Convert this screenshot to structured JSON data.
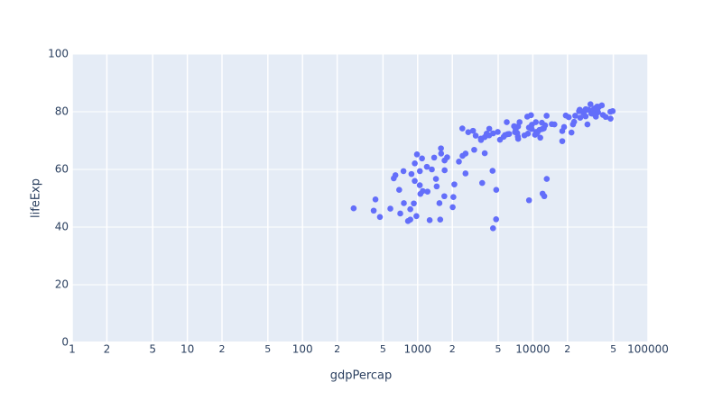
{
  "chart_data": {
    "type": "scatter",
    "x_label": "gdpPercap",
    "y_label": "lifeExp",
    "x_scale": "log",
    "grid": true,
    "color": "#636efa",
    "xlim": [
      1,
      100000
    ],
    "ylim": [
      0,
      100
    ],
    "xticks": [
      1,
      2,
      5,
      10,
      {
        "value": 20,
        "label": "2"
      },
      {
        "value": 50,
        "label": "5"
      },
      100,
      {
        "value": 200,
        "label": "2"
      },
      {
        "value": 500,
        "label": "5"
      },
      1000,
      {
        "value": 2000,
        "label": "2"
      },
      {
        "value": 5000,
        "label": "5"
      },
      10000,
      {
        "value": 20000,
        "label": "2"
      },
      {
        "value": 50000,
        "label": "5"
      },
      100000
    ],
    "yticks": [
      0,
      20,
      40,
      60,
      80,
      100
    ],
    "x": [
      975,
      5937,
      6223,
      4797,
      12779,
      34435,
      36126,
      29796,
      1391,
      33693,
      1441,
      3822,
      7446,
      12570,
      9066,
      10681,
      1217,
      430,
      1714,
      2042,
      36319,
      706,
      1704,
      13172,
      4959,
      7007,
      986,
      278,
      3633,
      9645,
      1545,
      14619,
      8948,
      22833,
      35278,
      2082,
      6025,
      6873,
      5581,
      5728,
      12154,
      641,
      691,
      33207,
      30470,
      13206,
      753,
      32170,
      1328,
      27538,
      5186,
      943,
      579,
      1202,
      3548,
      39725,
      18009,
      36181,
      2452,
      3541,
      11606,
      4471,
      40676,
      25523,
      28570,
      7321,
      31656,
      4519,
      1463,
      1593,
      23348,
      47307,
      10461,
      1569,
      415,
      12057,
      1045,
      759,
      12452,
      1043,
      1803,
      10957,
      11978,
      3096,
      9254,
      3820,
      824,
      944,
      4811,
      1091,
      36798,
      25185,
      2749,
      620,
      2014,
      49357,
      22316,
      2606,
      9809,
      4173,
      7409,
      3190,
      15390,
      20510,
      19329,
      7670,
      10808,
      863,
      1598,
      21655,
      1712,
      9787,
      863,
      47143,
      18678,
      25768,
      926,
      9270,
      28821,
      3970,
      2602,
      4513,
      33860,
      37506,
      4185,
      28718,
      1107,
      7458,
      883,
      18009,
      7093,
      8458,
      1056,
      33203,
      42952,
      10611,
      11416,
      2442,
      3025,
      2281,
      1271,
      470
    ],
    "values": [
      43.8,
      76.4,
      72.3,
      42.7,
      75.3,
      81.2,
      79.8,
      75.6,
      64.1,
      79.4,
      56.7,
      65.6,
      74.9,
      50.7,
      72.4,
      73.0,
      52.3,
      49.6,
      59.7,
      50.4,
      80.7,
      44.7,
      50.7,
      78.6,
      73.0,
      72.9,
      65.2,
      46.5,
      55.3,
      78.8,
      48.3,
      75.7,
      78.3,
      76.5,
      78.3,
      54.8,
      72.2,
      75.0,
      71.3,
      71.9,
      51.6,
      58.0,
      52.9,
      79.3,
      80.7,
      56.7,
      59.4,
      79.4,
      60.0,
      79.5,
      70.3,
      56.0,
      46.4,
      60.9,
      70.2,
      82.2,
      73.3,
      81.8,
      64.7,
      70.7,
      71.0,
      59.5,
      78.9,
      80.7,
      80.5,
      72.6,
      82.6,
      72.5,
      54.1,
      67.3,
      78.6,
      77.6,
      72.0,
      42.6,
      45.7,
      74.0,
      59.4,
      48.3,
      74.2,
      54.5,
      64.2,
      72.8,
      76.2,
      66.8,
      74.5,
      71.2,
      42.1,
      62.1,
      52.9,
      63.8,
      79.8,
      80.2,
      72.9,
      56.9,
      46.9,
      80.2,
      75.6,
      65.5,
      75.5,
      71.8,
      71.4,
      71.7,
      75.6,
      78.1,
      78.7,
      76.4,
      72.5,
      46.2,
      65.5,
      72.8,
      63.1,
      74.0,
      42.6,
      80.0,
      74.7,
      77.9,
      48.2,
      49.3,
      80.9,
      72.4,
      58.6,
      39.6,
      80.9,
      81.7,
      74.1,
      78.4,
      52.5,
      70.6,
      58.4,
      69.8,
      73.9,
      71.8,
      51.5,
      79.4,
      78.2,
      76.4,
      73.7,
      74.2,
      73.4,
      62.7,
      42.4,
      43.5
    ]
  }
}
